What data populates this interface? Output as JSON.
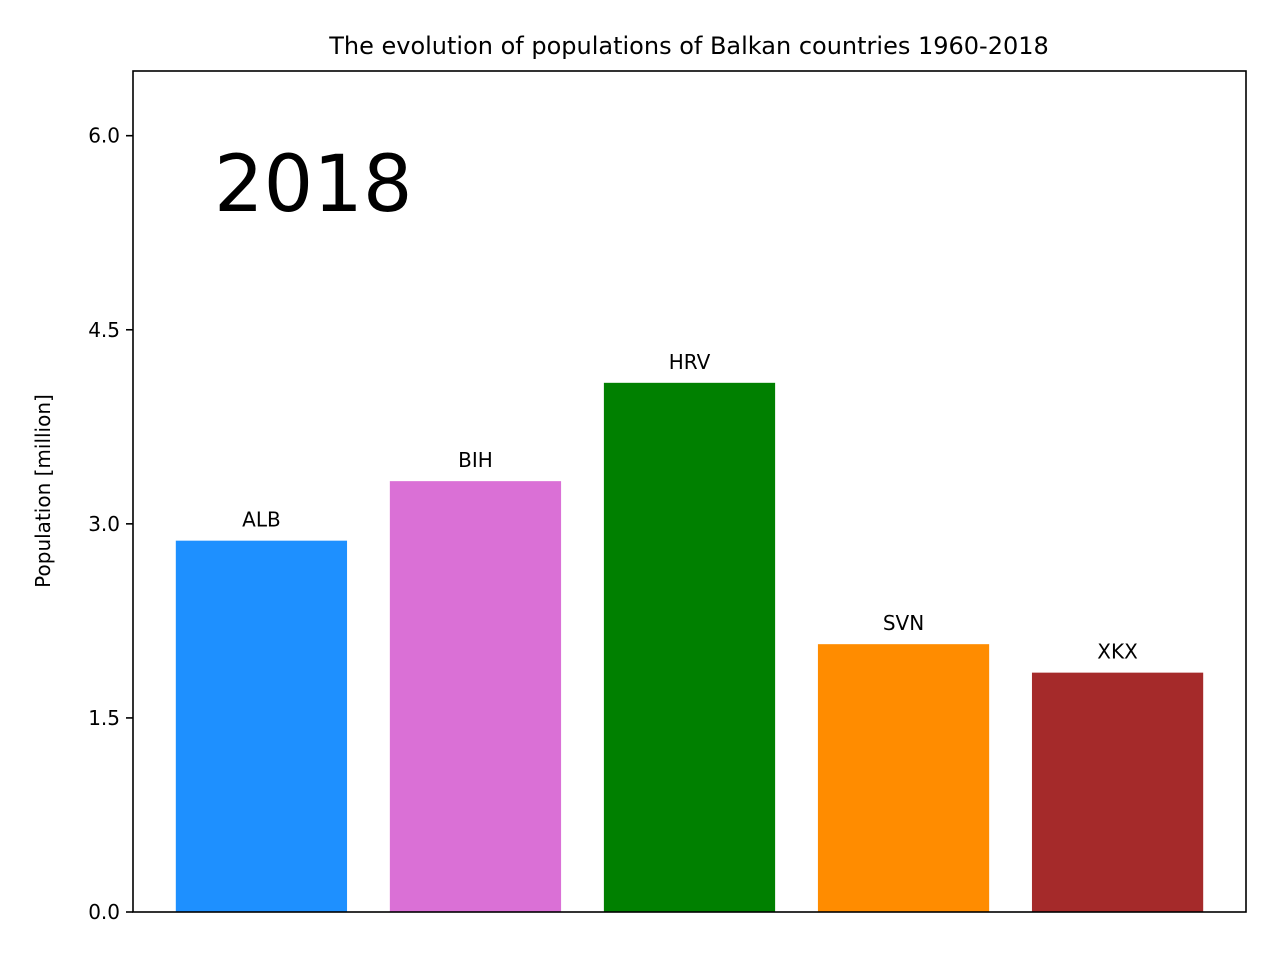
{
  "chart_data": {
    "type": "bar",
    "title": "The evolution of populations of Balkan countries 1960-2018",
    "xlabel": "",
    "ylabel": "Population [million]",
    "year_label": "2018",
    "categories": [
      "ALB",
      "BIH",
      "HRV",
      "SVN",
      "XKX"
    ],
    "values": [
      2.87,
      3.33,
      4.09,
      2.07,
      1.85
    ],
    "colors": [
      "#1e90ff",
      "#da70d6",
      "#008000",
      "#ff8c00",
      "#a52a2a"
    ],
    "ylim": [
      0,
      6.5
    ],
    "yticks": [
      0.0,
      1.5,
      3.0,
      4.5,
      6.0
    ],
    "ytick_labels": [
      "0.0",
      "1.5",
      "3.0",
      "4.5",
      "6.0"
    ],
    "grid": false,
    "legend": "none"
  }
}
